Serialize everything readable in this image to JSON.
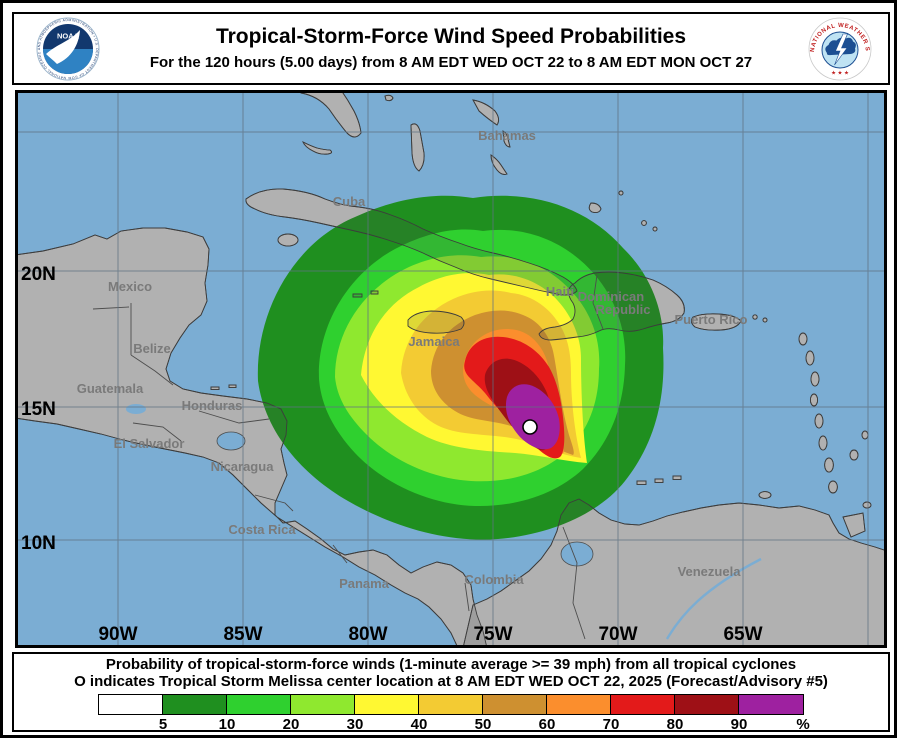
{
  "header": {
    "title": "Tropical-Storm-Force Wind Speed Probabilities",
    "subtitle": "For the 120 hours (5.00 days) from 8 AM EDT WED OCT 22 to 8 AM EDT MON OCT 27",
    "noaa_logo_text": "NOAA",
    "noaa_ring_text": "NATIONAL OCEANIC AND ATMOSPHERIC ADMINISTRATION • U.S. DEPARTMENT OF COMMERCE",
    "nws_ring_text": "NATIONAL WEATHER SERVICE",
    "nws_stars": "★ ★ ★"
  },
  "map": {
    "ocean_color": "#7BADD3",
    "land_color": "#C9C9C9",
    "grid_color": "#5F7182",
    "lat_labels": [
      "20N",
      "15N",
      "10N"
    ],
    "lon_labels": [
      "90W",
      "85W",
      "80W",
      "75W",
      "70W",
      "65W"
    ],
    "places": [
      "Mexico",
      "Belize",
      "Guatemala",
      "Honduras",
      "El Salvador",
      "Nicaragua",
      "Costa Rica",
      "Panama",
      "Colombia",
      "Venezuela",
      "Cuba",
      "Bahamas",
      "Jamaica",
      "Haiti",
      "Dominican",
      "Republic",
      "Puerto Rico"
    ],
    "storm_center_symbol": "white-circle"
  },
  "footer": {
    "line1": "Probability of tropical-storm-force winds (1-minute average >= 39 mph) from all tropical cyclones",
    "line2": "O indicates Tropical Storm Melissa center location at 8 AM EDT WED OCT 22, 2025 (Forecast/Advisory #5)"
  },
  "legend": {
    "values": [
      "5",
      "10",
      "20",
      "30",
      "40",
      "50",
      "60",
      "70",
      "80",
      "90",
      "%"
    ],
    "colors": [
      "#FFFFFF",
      "#1F8F1F",
      "#2FD02F",
      "#8FE82F",
      "#FFF832",
      "#F3CB33",
      "#CE9030",
      "#FB8E2D",
      "#E31A1A",
      "#9E1016",
      "#9E21A0"
    ]
  }
}
